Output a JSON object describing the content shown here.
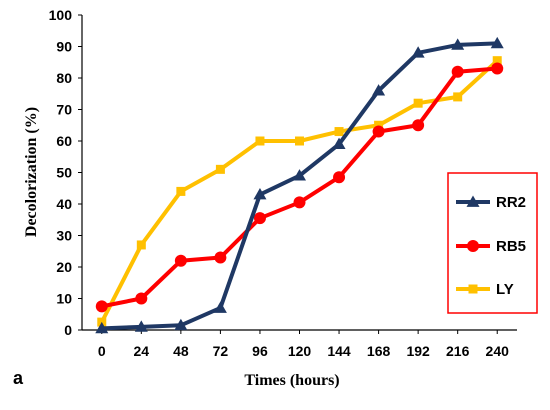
{
  "chart_data": {
    "type": "line",
    "panel_label": "a",
    "title": "",
    "xlabel": "Times (hours)",
    "ylabel": "Decolorization (%)",
    "x": [
      "0",
      "24",
      "48",
      "72",
      "96",
      "120",
      "144",
      "168",
      "192",
      "216",
      "240"
    ],
    "ylim": [
      0,
      100
    ],
    "yticks": [
      "0",
      "10",
      "20",
      "30",
      "40",
      "50",
      "60",
      "70",
      "80",
      "90",
      "100"
    ],
    "grid": false,
    "legend_position": "right",
    "series": [
      {
        "name": "RR2",
        "color": "#1f3864",
        "marker": "triangle",
        "values": [
          0.5,
          1,
          1.5,
          7,
          43,
          49,
          59,
          76,
          88,
          90.5,
          91
        ]
      },
      {
        "name": "RB5",
        "color": "#ff0000",
        "marker": "circle",
        "values": [
          7.5,
          10,
          22,
          23,
          35.5,
          40.5,
          48.5,
          63,
          65,
          82,
          83
        ]
      },
      {
        "name": "LY",
        "color": "#ffc000",
        "marker": "square",
        "values": [
          2.5,
          27,
          44,
          51,
          60,
          60,
          63,
          65,
          72,
          74,
          85.5
        ]
      }
    ]
  }
}
